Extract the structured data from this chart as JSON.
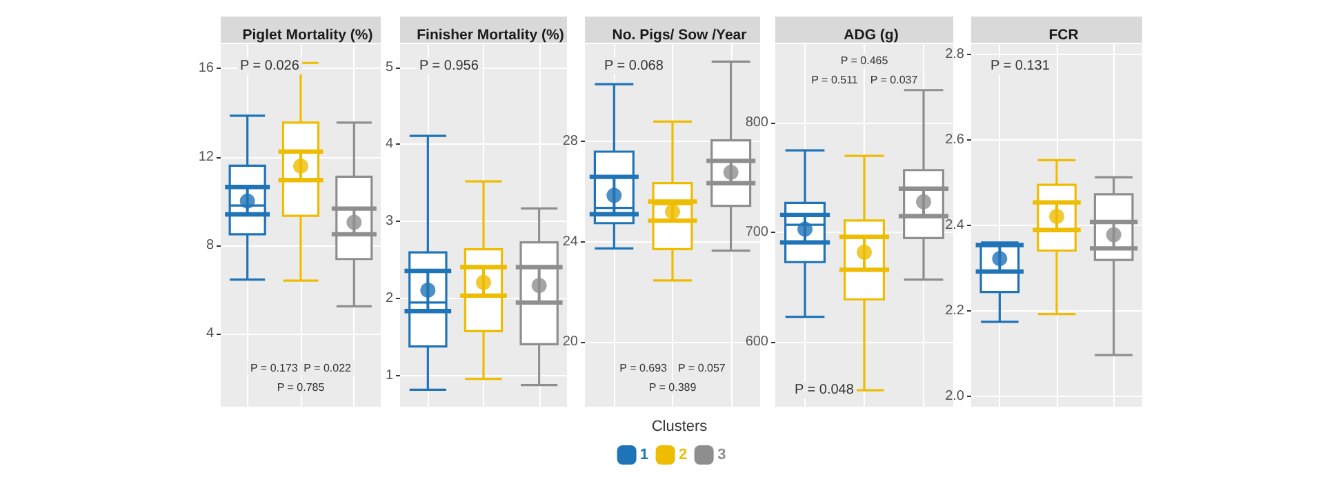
{
  "chart_data": [
    {
      "type": "box",
      "title": "Piglet Mortality (%)",
      "categories": [
        null,
        null,
        null
      ],
      "ylim": [
        0.7,
        17.1
      ],
      "yticks": [
        4,
        8,
        12,
        16
      ],
      "grid": true,
      "marker": "circle",
      "annotations": [
        "P = 0.026",
        "P = 0.173",
        "P = 0.022",
        "P = 0.785"
      ],
      "series": [
        {
          "color": "#1f73b7",
          "boxes": [
            {
              "low": 6.45,
              "q1": 8.5,
              "median": 9.8,
              "q3": 11.6,
              "high": 13.86
            },
            null,
            null
          ]
        },
        {
          "color": "#eebc00",
          "boxes": [
            null,
            {
              "low": 6.4,
              "q1": 9.33,
              "median": 12.2,
              "q3": 13.55,
              "high": 16.25
            },
            null
          ]
        },
        {
          "color": "#8e8e8e",
          "boxes": [
            null,
            null,
            {
              "low": 5.24,
              "q1": 7.38,
              "median": 8.5,
              "q3": 11.1,
              "high": 13.55
            }
          ]
        },
        {
          "type": "scatter",
          "colors": [
            "#1f73b7",
            "#eebc00",
            "#8e8e8e"
          ],
          "values": [
            10.0,
            11.58,
            9.04
          ],
          "errors": [
            [
              9.4,
              10.64
            ],
            [
              10.95,
              12.24
            ],
            [
              8.5,
              9.66
            ]
          ]
        }
      ]
    },
    {
      "type": "box",
      "title": "Finisher Mortality (%)",
      "categories": [
        null,
        null,
        null
      ],
      "ylim": [
        0.6,
        5.3
      ],
      "yticks": [
        1,
        2,
        3,
        4,
        5
      ],
      "grid": true,
      "marker": "circle",
      "annotations": [
        "P = 0.956"
      ],
      "series": [
        {
          "color": "#1f73b7",
          "boxes": [
            {
              "low": 0.82,
              "q1": 1.38,
              "median": 1.95,
              "q3": 2.6,
              "high": 4.11
            },
            null,
            null
          ]
        },
        {
          "color": "#eebc00",
          "boxes": [
            null,
            {
              "low": 0.96,
              "q1": 1.58,
              "median": 2.04,
              "q3": 2.64,
              "high": 3.52
            },
            null
          ]
        },
        {
          "color": "#8e8e8e",
          "boxes": [
            null,
            null,
            {
              "low": 0.88,
              "q1": 1.41,
              "median": 1.95,
              "q3": 2.73,
              "high": 3.17
            }
          ]
        },
        {
          "type": "scatter",
          "colors": [
            "#1f73b7",
            "#eebc00",
            "#8e8e8e"
          ],
          "values": [
            2.11,
            2.21,
            2.17
          ],
          "errors": [
            [
              1.84,
              2.36
            ],
            [
              2.04,
              2.41
            ],
            [
              1.95,
              2.41
            ]
          ]
        }
      ]
    },
    {
      "type": "box",
      "title": "No. Pigs/ Sow /Year",
      "categories": [
        null,
        null,
        null
      ],
      "ylim": [
        17.4,
        31.9
      ],
      "yticks": [
        20,
        24,
        28
      ],
      "grid": true,
      "marker": "circle",
      "legend": "bottom",
      "legend_title": "Clusters",
      "annotations": [
        "P = 0.068",
        "P = 0.693",
        "P = 0.057",
        "P = 0.389"
      ],
      "series": [
        {
          "name": "1",
          "color": "#1f73b7",
          "boxes": [
            {
              "low": 23.73,
              "q1": 24.74,
              "median": 25.35,
              "q3": 27.6,
              "high": 30.3
            },
            null,
            null
          ]
        },
        {
          "name": "2",
          "color": "#eebc00",
          "boxes": [
            null,
            {
              "low": 22.45,
              "q1": 23.7,
              "median": 25.5,
              "q3": 26.34,
              "high": 28.8
            },
            null
          ]
        },
        {
          "name": "3",
          "color": "#8e8e8e",
          "boxes": [
            null,
            null,
            {
              "low": 23.64,
              "q1": 25.43,
              "median": 26.34,
              "q3": 28.05,
              "high": 31.2
            }
          ]
        },
        {
          "type": "scatter",
          "colors": [
            "#1f73b7",
            "#eebc00",
            "#8e8e8e"
          ],
          "values": [
            25.85,
            25.2,
            26.77
          ],
          "errors": [
            [
              25.1,
              26.59
            ],
            [
              24.84,
              25.6
            ],
            [
              26.34,
              27.23
            ]
          ]
        }
      ]
    },
    {
      "type": "box",
      "title": "ADG (g)",
      "categories": [
        null,
        null,
        null
      ],
      "ylim": [
        541,
        872
      ],
      "yticks": [
        600,
        700,
        800
      ],
      "grid": true,
      "marker": "circle",
      "annotations": [
        "P = 0.048",
        "P = 0.511",
        "P = 0.037",
        "P = 0.465"
      ],
      "series": [
        {
          "color": "#1f73b7",
          "boxes": [
            {
              "low": 623,
              "q1": 673,
              "median": 707,
              "q3": 727,
              "high": 775
            },
            null,
            null
          ]
        },
        {
          "color": "#eebc00",
          "boxes": [
            null,
            {
              "low": 556,
              "q1": 639,
              "median": 666,
              "q3": 711,
              "high": 770
            },
            null
          ]
        },
        {
          "color": "#8e8e8e",
          "boxes": [
            null,
            null,
            {
              "low": 657,
              "q1": 695,
              "median": 715,
              "q3": 757,
              "high": 830
            }
          ]
        },
        {
          "type": "scatter",
          "colors": [
            "#1f73b7",
            "#eebc00",
            "#8e8e8e"
          ],
          "values": [
            703,
            682,
            728
          ],
          "errors": [
            [
              691,
              716
            ],
            [
              666,
              696
            ],
            [
              715,
              740
            ]
          ]
        }
      ]
    },
    {
      "type": "box",
      "title": "FCR",
      "categories": [
        null,
        null,
        null
      ],
      "ylim": [
        1.975,
        2.825
      ],
      "yticks": [
        {
          "value": 2,
          "label": "2.0"
        },
        2.2,
        2.4,
        2.6,
        2.8
      ],
      "grid": true,
      "marker": "circle",
      "annotations": [
        "P = 0.131"
      ],
      "series": [
        {
          "color": "#1f73b7",
          "boxes": [
            {
              "low": 2.174,
              "q1": 2.244,
              "median": 2.292,
              "q3": 2.354,
              "high": 2.36
            },
            null,
            null
          ]
        },
        {
          "color": "#eebc00",
          "boxes": [
            null,
            {
              "low": 2.192,
              "q1": 2.341,
              "median": 2.389,
              "q3": 2.495,
              "high": 2.553
            },
            null
          ]
        },
        {
          "color": "#8e8e8e",
          "boxes": [
            null,
            null,
            {
              "low": 2.096,
              "q1": 2.319,
              "median": 2.408,
              "q3": 2.473,
              "high": 2.513
            }
          ]
        },
        {
          "type": "scatter",
          "colors": [
            "#1f73b7",
            "#eebc00",
            "#8e8e8e"
          ],
          "values": [
            2.322,
            2.421,
            2.378
          ],
          "errors": [
            [
              2.292,
              2.354
            ],
            [
              2.389,
              2.454
            ],
            [
              2.346,
              2.408
            ]
          ]
        }
      ]
    }
  ]
}
